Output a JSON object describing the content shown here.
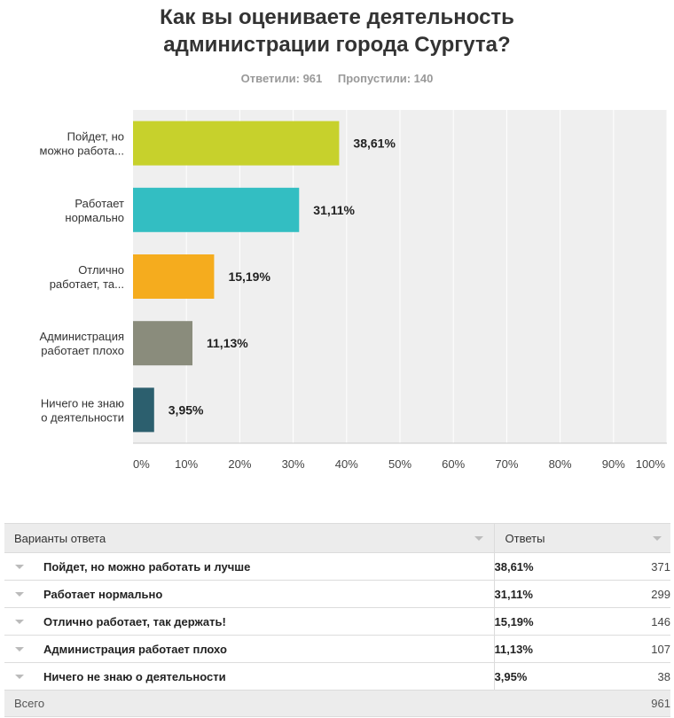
{
  "title_line1": "Как вы оцениваете деятельность",
  "title_line2": "администрации города Сургута?",
  "stats": {
    "answered": "Ответили: 961",
    "skipped": "Пропустили: 140"
  },
  "chart_data": {
    "type": "bar",
    "orientation": "horizontal",
    "categories": [
      [
        "Пойдет, но",
        "можно работа..."
      ],
      [
        "Работает",
        "нормально"
      ],
      [
        "Отлично",
        "работает, та..."
      ],
      [
        "Администрация",
        "работает плохо"
      ],
      [
        "Ничего не знаю",
        "о деятельности"
      ]
    ],
    "values": [
      38.61,
      31.11,
      15.19,
      11.13,
      3.95
    ],
    "value_labels": [
      "38,61%",
      "31,11%",
      "15,19%",
      "11,13%",
      "3,95%"
    ],
    "colors": [
      "#c7d12c",
      "#33bec2",
      "#f5ac1e",
      "#8a8c7c",
      "#2c5f6e"
    ],
    "xlim": [
      0,
      100
    ],
    "xticks": [
      "0%",
      "10%",
      "20%",
      "30%",
      "40%",
      "50%",
      "60%",
      "70%",
      "80%",
      "90%",
      "100%"
    ],
    "grid": true,
    "background": "#efefef"
  },
  "table": {
    "header_answers": "Варианты ответа",
    "header_responses": "Ответы",
    "rows": [
      {
        "label": "Пойдет, но можно работать и лучше",
        "pct": "38,61%",
        "count": "371"
      },
      {
        "label": "Работает нормально",
        "pct": "31,11%",
        "count": "299"
      },
      {
        "label": "Отлично работает, так держать!",
        "pct": "15,19%",
        "count": "146"
      },
      {
        "label": "Администрация работает плохо",
        "pct": "11,13%",
        "count": "107"
      },
      {
        "label": "Ничего не знаю о деятельности",
        "pct": "3,95%",
        "count": "38"
      }
    ],
    "total_label": "Всего",
    "total_count": "961"
  }
}
